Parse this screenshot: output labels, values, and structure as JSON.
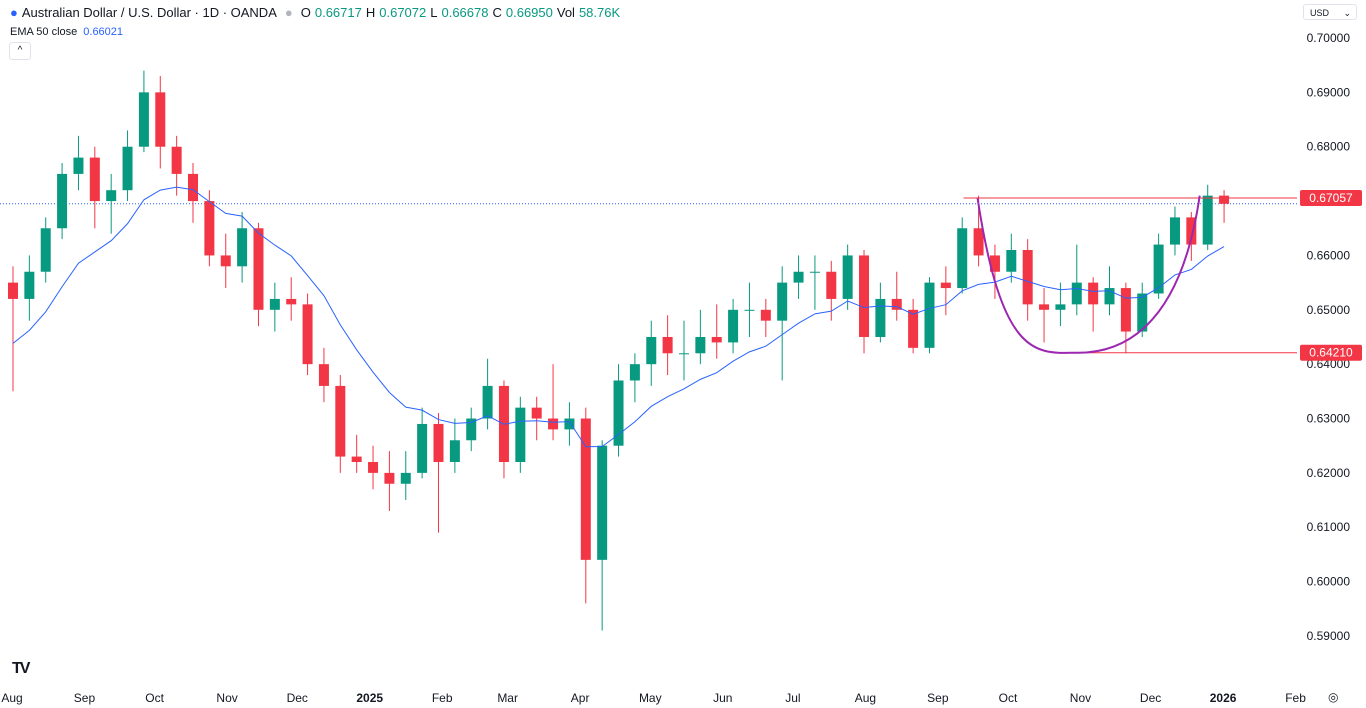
{
  "header": {
    "symbol_title": "Australian Dollar / U.S. Dollar · 1D · OANDA",
    "o_label": "O",
    "o": "0.66717",
    "h_label": "H",
    "h": "0.67072",
    "l_label": "L",
    "l": "0.66678",
    "c_label": "C",
    "c": "0.66950",
    "vol_label": "Vol",
    "vol": "58.76K"
  },
  "indicator": {
    "label": "EMA 50 close",
    "value": "0.66021",
    "color": "#2962ff"
  },
  "currency": "USD",
  "colors": {
    "up": "#089981",
    "down": "#f23645",
    "ema": "#2962ff",
    "cup": "#9c27b0",
    "level": "#f23645"
  },
  "chart_data": {
    "type": "candlestick",
    "ylim": [
      0.585,
      0.705
    ],
    "yticks": [
      "0.70000",
      "0.69000",
      "0.68000",
      "0.67000",
      "0.66000",
      "0.65000",
      "0.64000",
      "0.63000",
      "0.62000",
      "0.61000",
      "0.60000",
      "0.59000"
    ],
    "xticks": [
      {
        "label": "Aug",
        "date": "2024-08-01"
      },
      {
        "label": "Sep",
        "date": "2024-09-01"
      },
      {
        "label": "Oct",
        "date": "2024-10-01"
      },
      {
        "label": "Nov",
        "date": "2024-11-01"
      },
      {
        "label": "Dec",
        "date": "2024-12-01"
      },
      {
        "label": "2025",
        "date": "2025-01-01",
        "bold": true
      },
      {
        "label": "Feb",
        "date": "2025-02-01"
      },
      {
        "label": "Mar",
        "date": "2025-03-01"
      },
      {
        "label": "Apr",
        "date": "2025-04-01"
      },
      {
        "label": "May",
        "date": "2025-05-01"
      },
      {
        "label": "Jun",
        "date": "2025-06-01"
      },
      {
        "label": "Jul",
        "date": "2025-07-01"
      },
      {
        "label": "Aug",
        "date": "2025-08-01"
      },
      {
        "label": "Sep",
        "date": "2025-09-01"
      },
      {
        "label": "Oct",
        "date": "2025-10-01"
      },
      {
        "label": "Nov",
        "date": "2025-11-01"
      },
      {
        "label": "Dec",
        "date": "2025-12-01"
      },
      {
        "label": "2026",
        "date": "2026-01-01",
        "bold": true
      },
      {
        "label": "Feb",
        "date": "2026-02-01"
      }
    ],
    "weekly": [
      [
        "2024-07-29",
        0.655,
        0.658,
        0.635,
        0.652
      ],
      [
        "2024-08-05",
        0.652,
        0.66,
        0.648,
        0.657
      ],
      [
        "2024-08-12",
        0.657,
        0.667,
        0.655,
        0.665
      ],
      [
        "2024-08-19",
        0.665,
        0.677,
        0.663,
        0.675
      ],
      [
        "2024-08-26",
        0.675,
        0.682,
        0.672,
        0.678
      ],
      [
        "2024-09-02",
        0.678,
        0.68,
        0.665,
        0.67
      ],
      [
        "2024-09-09",
        0.67,
        0.675,
        0.664,
        0.672
      ],
      [
        "2024-09-16",
        0.672,
        0.683,
        0.67,
        0.68
      ],
      [
        "2024-09-23",
        0.68,
        0.694,
        0.679,
        0.69
      ],
      [
        "2024-09-30",
        0.69,
        0.693,
        0.676,
        0.68
      ],
      [
        "2024-10-07",
        0.68,
        0.682,
        0.671,
        0.675
      ],
      [
        "2024-10-14",
        0.675,
        0.677,
        0.666,
        0.67
      ],
      [
        "2024-10-21",
        0.67,
        0.672,
        0.658,
        0.66
      ],
      [
        "2024-10-28",
        0.66,
        0.664,
        0.654,
        0.658
      ],
      [
        "2024-11-04",
        0.658,
        0.668,
        0.655,
        0.665
      ],
      [
        "2024-11-11",
        0.665,
        0.666,
        0.647,
        0.65
      ],
      [
        "2024-11-18",
        0.65,
        0.655,
        0.646,
        0.652
      ],
      [
        "2024-11-25",
        0.652,
        0.656,
        0.648,
        0.651
      ],
      [
        "2024-12-02",
        0.651,
        0.653,
        0.638,
        0.64
      ],
      [
        "2024-12-09",
        0.64,
        0.643,
        0.633,
        0.636
      ],
      [
        "2024-12-16",
        0.636,
        0.638,
        0.62,
        0.623
      ],
      [
        "2024-12-23",
        0.623,
        0.627,
        0.62,
        0.622
      ],
      [
        "2024-12-30",
        0.622,
        0.625,
        0.617,
        0.62
      ],
      [
        "2025-01-06",
        0.62,
        0.624,
        0.613,
        0.618
      ],
      [
        "2025-01-13",
        0.618,
        0.624,
        0.615,
        0.62
      ],
      [
        "2025-01-20",
        0.62,
        0.632,
        0.619,
        0.629
      ],
      [
        "2025-01-27",
        0.629,
        0.631,
        0.609,
        0.622
      ],
      [
        "2025-02-03",
        0.622,
        0.63,
        0.62,
        0.626
      ],
      [
        "2025-02-10",
        0.626,
        0.632,
        0.624,
        0.63
      ],
      [
        "2025-02-17",
        0.63,
        0.641,
        0.628,
        0.636
      ],
      [
        "2025-02-24",
        0.636,
        0.637,
        0.619,
        0.622
      ],
      [
        "2025-03-03",
        0.622,
        0.634,
        0.62,
        0.632
      ],
      [
        "2025-03-10",
        0.632,
        0.634,
        0.626,
        0.63
      ],
      [
        "2025-03-17",
        0.63,
        0.64,
        0.626,
        0.628
      ],
      [
        "2025-03-24",
        0.628,
        0.633,
        0.625,
        0.63
      ],
      [
        "2025-03-31",
        0.63,
        0.632,
        0.596,
        0.604
      ],
      [
        "2025-04-07",
        0.604,
        0.626,
        0.591,
        0.625
      ],
      [
        "2025-04-14",
        0.625,
        0.64,
        0.623,
        0.637
      ],
      [
        "2025-04-21",
        0.637,
        0.642,
        0.633,
        0.64
      ],
      [
        "2025-04-28",
        0.64,
        0.648,
        0.636,
        0.645
      ],
      [
        "2025-05-05",
        0.645,
        0.649,
        0.638,
        0.642
      ],
      [
        "2025-05-12",
        0.642,
        0.648,
        0.637,
        0.642
      ],
      [
        "2025-05-19",
        0.642,
        0.65,
        0.64,
        0.645
      ],
      [
        "2025-05-26",
        0.645,
        0.651,
        0.641,
        0.644
      ],
      [
        "2025-06-02",
        0.644,
        0.652,
        0.642,
        0.65
      ],
      [
        "2025-06-09",
        0.65,
        0.655,
        0.645,
        0.65
      ],
      [
        "2025-06-16",
        0.65,
        0.652,
        0.645,
        0.648
      ],
      [
        "2025-06-23",
        0.648,
        0.658,
        0.637,
        0.655
      ],
      [
        "2025-06-30",
        0.655,
        0.66,
        0.652,
        0.657
      ],
      [
        "2025-07-07",
        0.657,
        0.66,
        0.65,
        0.657
      ],
      [
        "2025-07-14",
        0.657,
        0.659,
        0.648,
        0.652
      ],
      [
        "2025-07-21",
        0.652,
        0.662,
        0.65,
        0.66
      ],
      [
        "2025-07-28",
        0.66,
        0.661,
        0.642,
        0.645
      ],
      [
        "2025-08-04",
        0.645,
        0.655,
        0.644,
        0.652
      ],
      [
        "2025-08-11",
        0.652,
        0.657,
        0.648,
        0.65
      ],
      [
        "2025-08-18",
        0.65,
        0.652,
        0.642,
        0.643
      ],
      [
        "2025-08-25",
        0.643,
        0.656,
        0.642,
        0.655
      ],
      [
        "2025-09-01",
        0.655,
        0.658,
        0.649,
        0.654
      ],
      [
        "2025-09-08",
        0.654,
        0.667,
        0.653,
        0.665
      ],
      [
        "2025-09-15",
        0.665,
        0.671,
        0.658,
        0.66
      ],
      [
        "2025-09-22",
        0.66,
        0.662,
        0.652,
        0.657
      ],
      [
        "2025-09-29",
        0.657,
        0.664,
        0.655,
        0.661
      ],
      [
        "2025-10-06",
        0.661,
        0.663,
        0.648,
        0.651
      ],
      [
        "2025-10-13",
        0.651,
        0.654,
        0.644,
        0.65
      ],
      [
        "2025-10-20",
        0.65,
        0.655,
        0.647,
        0.651
      ],
      [
        "2025-10-27",
        0.651,
        0.662,
        0.649,
        0.655
      ],
      [
        "2025-11-03",
        0.655,
        0.656,
        0.646,
        0.651
      ],
      [
        "2025-11-10",
        0.651,
        0.658,
        0.649,
        0.654
      ],
      [
        "2025-11-17",
        0.654,
        0.655,
        0.642,
        0.646
      ],
      [
        "2025-11-24",
        0.646,
        0.655,
        0.645,
        0.653
      ],
      [
        "2025-12-01",
        0.653,
        0.664,
        0.652,
        0.662
      ],
      [
        "2025-12-08",
        0.662,
        0.669,
        0.66,
        0.667
      ],
      [
        "2025-12-15",
        0.667,
        0.668,
        0.659,
        0.662
      ],
      [
        "2025-12-22",
        0.662,
        0.673,
        0.661,
        0.671
      ],
      [
        "2025-12-29",
        0.671,
        0.672,
        0.666,
        0.6695
      ]
    ],
    "ema_period": 50,
    "levels": [
      {
        "label": "0.67057",
        "price": 0.67057,
        "from": "2025-09-12"
      },
      {
        "label": "0.64210",
        "price": 0.6421,
        "from": "2025-10-24"
      }
    ],
    "last_price": 0.6695,
    "cup": {
      "start": [
        "2025-09-18",
        0.6705
      ],
      "bottom": [
        "2025-10-31",
        0.6421
      ],
      "end": [
        "2025-12-22",
        0.671
      ]
    }
  },
  "footer": {
    "logo": "TV"
  }
}
